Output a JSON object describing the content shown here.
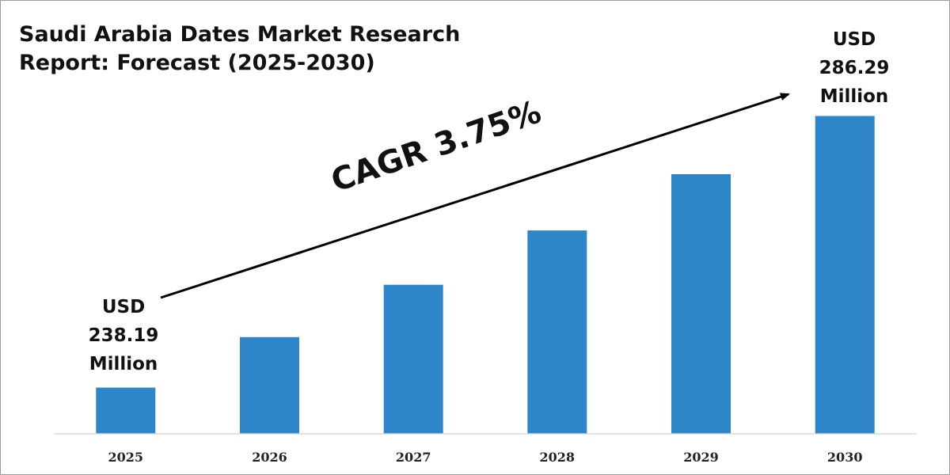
{
  "chart_data": {
    "type": "bar",
    "title": "Saudi Arabia Dates Market Research Report: Forecast (2025-2030)",
    "categories": [
      "2025",
      "2026",
      "2027",
      "2028",
      "2029",
      "2030"
    ],
    "values": [
      238.19,
      247.13,
      256.4,
      266.01,
      275.98,
      286.29
    ],
    "xlabel": "",
    "ylabel": "",
    "ylim": [
      230,
      290
    ],
    "grid": false,
    "legend": "none",
    "bar_color": "#2e85c8",
    "annotations": {
      "start": {
        "line1": "USD",
        "line2": "238.19",
        "line3": "Million"
      },
      "end": {
        "line1": "USD",
        "line2": "286.29",
        "line3": "Million"
      },
      "growth": "CAGR 3.75%"
    }
  }
}
